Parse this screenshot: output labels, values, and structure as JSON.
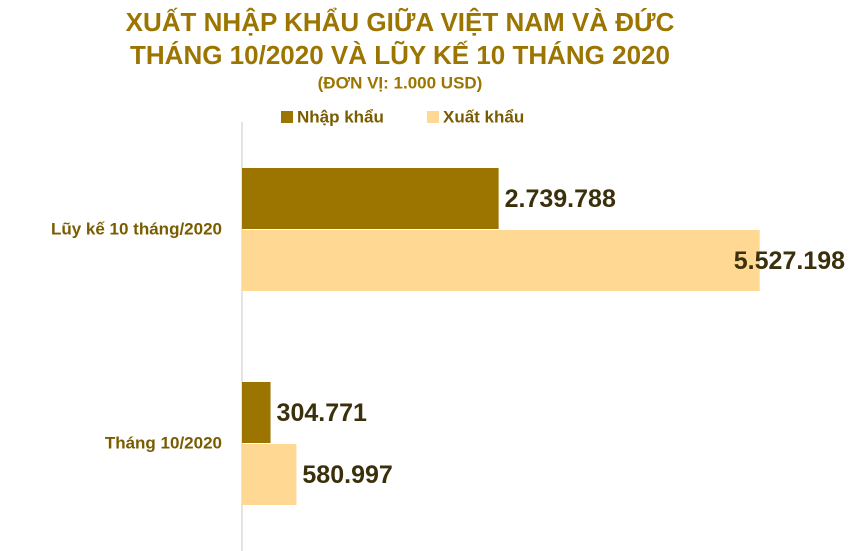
{
  "chart_data": {
    "type": "bar",
    "orientation": "horizontal",
    "title": [
      "XUẤT NHẬP KHẨU GIỮA VIỆT NAM VÀ ĐỨC",
      "THÁNG 10/2020 VÀ LŨY KẾ 10 THÁNG 2020"
    ],
    "subtitle": "(ĐƠN VỊ: 1.000 USD)",
    "categories": [
      "Lũy kế 10 tháng/2020",
      "Tháng 10/2020"
    ],
    "series": [
      {
        "name": "Nhập khẩu",
        "color": "#9b7500",
        "values": [
          2739788,
          304771
        ],
        "value_labels": [
          "2.739.788",
          "304.771"
        ]
      },
      {
        "name": "Xuất khẩu",
        "color": "#ffd894",
        "values": [
          5527198,
          580997
        ],
        "value_labels": [
          "5.527.198",
          "580.997"
        ]
      }
    ],
    "xlim": [
      0,
      6000000
    ],
    "legend": "top"
  }
}
